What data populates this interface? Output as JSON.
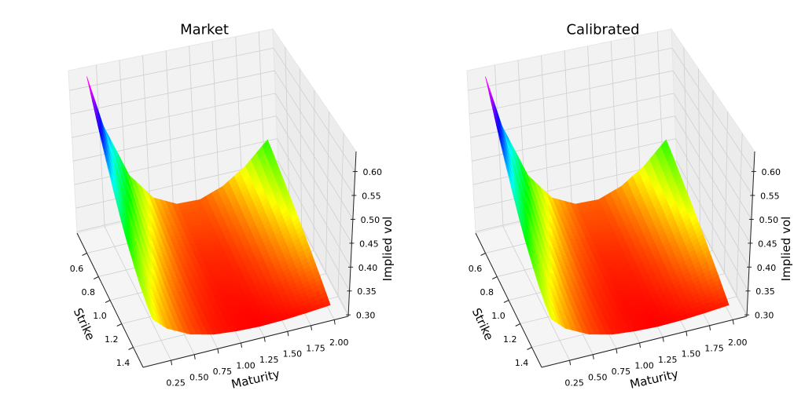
{
  "chart_data": [
    {
      "type": "surface",
      "title": "Market",
      "xlabel": "Strike",
      "ylabel": "Maturity",
      "zlabel": "Implied vol",
      "colormap": "gist_rainbow",
      "xlim": [
        0.43,
        1.57
      ],
      "ylim": [
        -0.05,
        2.15
      ],
      "zlim": [
        0.297,
        0.642
      ],
      "grid": true,
      "xticks": [
        "0.6",
        "0.8",
        "1.0",
        "1.2",
        "1.4"
      ],
      "yticks": [
        "0.25",
        "0.50",
        "0.75",
        "1.00",
        "1.25",
        "1.50",
        "1.75",
        "2.00"
      ],
      "zticks": [
        "0.30",
        "0.35",
        "0.40",
        "0.45",
        "0.50",
        "0.55",
        "0.60"
      ],
      "strikes": [
        0.5,
        0.6,
        0.7,
        0.8,
        0.9,
        1.0,
        1.1,
        1.2,
        1.3,
        1.4,
        1.5
      ],
      "maturities": [
        0.1,
        0.25,
        0.5,
        0.75,
        1.0,
        1.25,
        1.5,
        1.75,
        2.0
      ],
      "z": [
        [
          0.64,
          0.595,
          0.553,
          0.516,
          0.483,
          0.454,
          0.429,
          0.409,
          0.392,
          0.38,
          0.372
        ],
        [
          0.529,
          0.498,
          0.469,
          0.444,
          0.421,
          0.401,
          0.385,
          0.371,
          0.36,
          0.352,
          0.346
        ],
        [
          0.413,
          0.397,
          0.383,
          0.37,
          0.358,
          0.348,
          0.34,
          0.333,
          0.328,
          0.324,
          0.322
        ],
        [
          0.353,
          0.345,
          0.338,
          0.331,
          0.326,
          0.321,
          0.317,
          0.314,
          0.312,
          0.31,
          0.31
        ],
        [
          0.328,
          0.323,
          0.32,
          0.316,
          0.313,
          0.311,
          0.309,
          0.307,
          0.306,
          0.305,
          0.305
        ],
        [
          0.326,
          0.323,
          0.32,
          0.317,
          0.314,
          0.312,
          0.31,
          0.308,
          0.306,
          0.304,
          0.303
        ],
        [
          0.343,
          0.339,
          0.334,
          0.33,
          0.326,
          0.322,
          0.318,
          0.315,
          0.311,
          0.308,
          0.304
        ],
        [
          0.375,
          0.368,
          0.361,
          0.354,
          0.347,
          0.34,
          0.334,
          0.327,
          0.32,
          0.314,
          0.307
        ],
        [
          0.422,
          0.411,
          0.399,
          0.388,
          0.377,
          0.366,
          0.355,
          0.344,
          0.333,
          0.322,
          0.311
        ]
      ]
    },
    {
      "type": "surface",
      "title": "Calibrated",
      "xlabel": "Strike",
      "ylabel": "Maturity",
      "zlabel": "Implied vol",
      "colormap": "gist_rainbow",
      "xlim": [
        0.43,
        1.57
      ],
      "ylim": [
        -0.05,
        2.15
      ],
      "zlim": [
        0.297,
        0.642
      ],
      "grid": true,
      "xticks": [
        "0.6",
        "0.8",
        "1.0",
        "1.2",
        "1.4"
      ],
      "yticks": [
        "0.25",
        "0.50",
        "0.75",
        "1.00",
        "1.25",
        "1.50",
        "1.75",
        "2.00"
      ],
      "zticks": [
        "0.30",
        "0.35",
        "0.40",
        "0.45",
        "0.50",
        "0.55",
        "0.60"
      ],
      "strikes": [
        0.5,
        0.6,
        0.7,
        0.8,
        0.9,
        1.0,
        1.1,
        1.2,
        1.3,
        1.4,
        1.5
      ],
      "maturities": [
        0.1,
        0.25,
        0.5,
        0.75,
        1.0,
        1.25,
        1.5,
        1.75,
        2.0
      ],
      "z": [
        [
          0.64,
          0.595,
          0.553,
          0.516,
          0.483,
          0.454,
          0.429,
          0.409,
          0.392,
          0.38,
          0.372
        ],
        [
          0.529,
          0.498,
          0.469,
          0.444,
          0.421,
          0.401,
          0.385,
          0.371,
          0.36,
          0.352,
          0.346
        ],
        [
          0.413,
          0.397,
          0.383,
          0.37,
          0.358,
          0.348,
          0.34,
          0.333,
          0.328,
          0.324,
          0.322
        ],
        [
          0.353,
          0.345,
          0.338,
          0.331,
          0.326,
          0.321,
          0.317,
          0.314,
          0.312,
          0.31,
          0.31
        ],
        [
          0.328,
          0.323,
          0.32,
          0.316,
          0.313,
          0.311,
          0.309,
          0.307,
          0.306,
          0.305,
          0.305
        ],
        [
          0.326,
          0.323,
          0.32,
          0.317,
          0.314,
          0.312,
          0.31,
          0.308,
          0.306,
          0.304,
          0.303
        ],
        [
          0.343,
          0.339,
          0.334,
          0.33,
          0.326,
          0.322,
          0.318,
          0.315,
          0.311,
          0.308,
          0.304
        ],
        [
          0.375,
          0.368,
          0.361,
          0.354,
          0.347,
          0.34,
          0.334,
          0.327,
          0.32,
          0.314,
          0.307
        ],
        [
          0.422,
          0.411,
          0.399,
          0.388,
          0.377,
          0.366,
          0.355,
          0.344,
          0.333,
          0.322,
          0.311
        ]
      ]
    }
  ]
}
